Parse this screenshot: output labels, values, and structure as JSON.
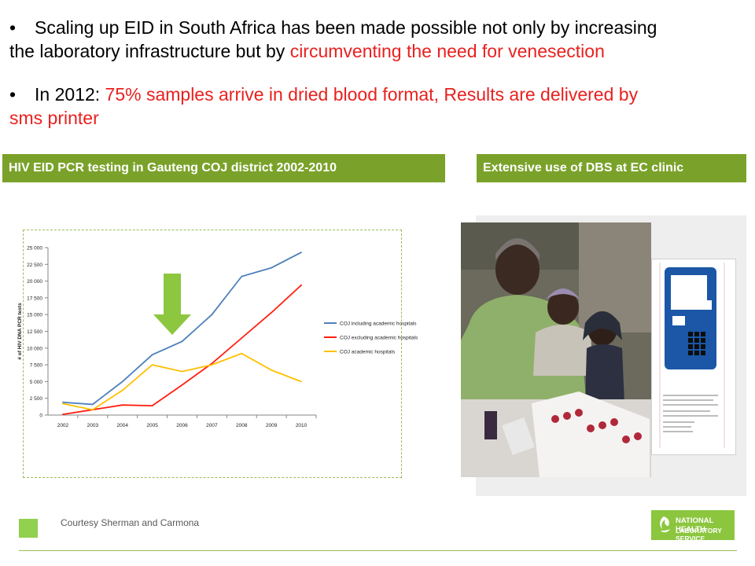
{
  "bullets": [
    {
      "line1": "Scaling up EID in South Africa has been made possible not only by increasing",
      "line2_black": "the laboratory infrastructure but by ",
      "line2_red": "circumventing the need for venesection"
    },
    {
      "line1_black": "In 2012: ",
      "line1_red": "75% samples arrive in dried blood format, Results are delivered by",
      "line2_red": "sms printer"
    }
  ],
  "headers": {
    "left": "HIV EID PCR testing in Gauteng COJ district 2002-2010",
    "right": "Extensive use of DBS at EC clinic"
  },
  "colors": {
    "accent_green": "#7aa22a",
    "highlight_red": "#e8211f",
    "footer_square": "#92d050",
    "logo_green": "#8cc63f",
    "arrow_green": "#8dc63f"
  },
  "chart_data": {
    "type": "line",
    "x": [
      "2002",
      "2003",
      "2004",
      "2005",
      "2006",
      "2007",
      "2008",
      "2009",
      "2010"
    ],
    "ylabel": "# of HIV DNA PCR tests",
    "ylim": [
      0,
      25000
    ],
    "yticks": [
      "0",
      "2 500",
      "5 000",
      "7 500",
      "10 000",
      "12 500",
      "15 000",
      "17 500",
      "20 000",
      "22 500",
      "25 000"
    ],
    "grid": false,
    "legend_position": "right",
    "series": [
      {
        "name": "COJ including academic hospitals",
        "color": "#4f81bd",
        "values": [
          1900,
          1600,
          5000,
          9000,
          11000,
          15000,
          20700,
          22000,
          24300
        ]
      },
      {
        "name": "COJ excluding academic hospitals",
        "color": "#ff1f0f",
        "values": [
          100,
          800,
          1500,
          1400,
          4500,
          7700,
          11500,
          15300,
          19400
        ]
      },
      {
        "name": "COJ academic hospitals",
        "color": "#ffc000",
        "values": [
          1700,
          800,
          3700,
          7500,
          6500,
          7500,
          9200,
          6700,
          5000
        ]
      }
    ]
  },
  "footer": {
    "courtesy": "Courtesy Sherman and Carmona",
    "logo_line1": "NATIONAL HEALTH",
    "logo_line2": "LABORATORY SERVICE"
  }
}
